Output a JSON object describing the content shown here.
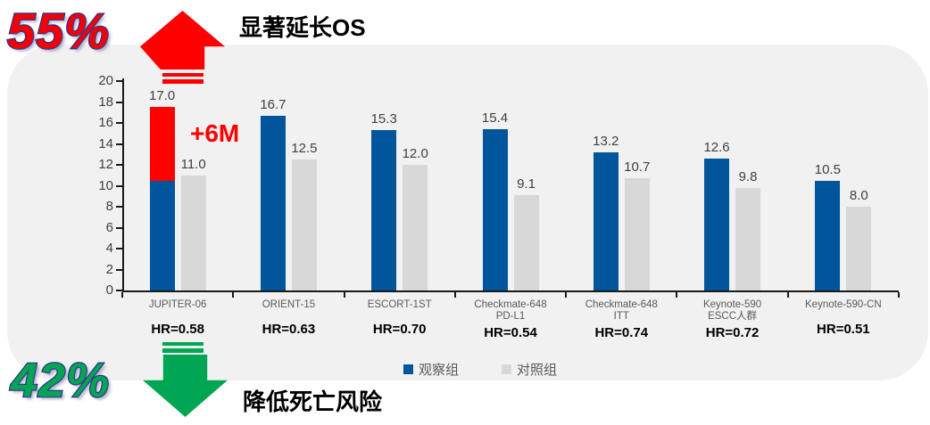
{
  "decorations": {
    "percent_up": "55%",
    "percent_down": "42%",
    "title_up": "显著延长OS",
    "title_down": "降低死亡风险",
    "gain_label": "+6M",
    "up_arrow_color": "#ff0000",
    "down_arrow_color": "#00a651",
    "percent_up_color": "#f40000",
    "percent_down_color": "#00a651",
    "outline_color": "#2e3192"
  },
  "legend": {
    "items": [
      {
        "label": "观察组",
        "color": "#00559b"
      },
      {
        "label": "对照组",
        "color": "#d8d8d8"
      }
    ]
  },
  "colors": {
    "observed_bar": "#00559b",
    "control_bar": "#d8d8d8",
    "highlight_segment": "#ff0000",
    "panel_bg": "#f1f1f1",
    "axis": "#1a1a1a",
    "value_label": "#404040",
    "category_label": "#595959"
  },
  "chart_data": {
    "type": "bar",
    "title": "显著延长OS",
    "categories": [
      [
        "JUPITER-06"
      ],
      [
        "ORIENT-15"
      ],
      [
        "ESCORT-1ST"
      ],
      [
        "Checkmate-648",
        "PD-L1"
      ],
      [
        "Checkmate-648",
        "ITT"
      ],
      [
        "Keynote-590",
        "ESCC人群"
      ],
      [
        "Keynote-590-CN"
      ]
    ],
    "series": [
      {
        "name": "观察组",
        "color": "#00559b",
        "values": [
          17.0,
          16.7,
          15.3,
          15.4,
          13.2,
          12.6,
          10.5
        ]
      },
      {
        "name": "对照组",
        "color": "#d8d8d8",
        "values": [
          11.0,
          12.5,
          12.0,
          9.1,
          10.7,
          9.8,
          8.0
        ]
      }
    ],
    "hr_labels": [
      "HR=0.58",
      "HR=0.63",
      "HR=0.70",
      "HR=0.54",
      "HR=0.74",
      "HR=0.72",
      "HR=0.51"
    ],
    "ylim": [
      0,
      20
    ],
    "ytick_step": 2,
    "grid": false,
    "legend_position": "bottom",
    "highlight": {
      "category": "JUPITER-06",
      "series": "观察组",
      "segment_from": 10.5,
      "segment_to": 17.5,
      "color": "#ff0000",
      "meaning": "+6M OS gain vs control"
    }
  }
}
